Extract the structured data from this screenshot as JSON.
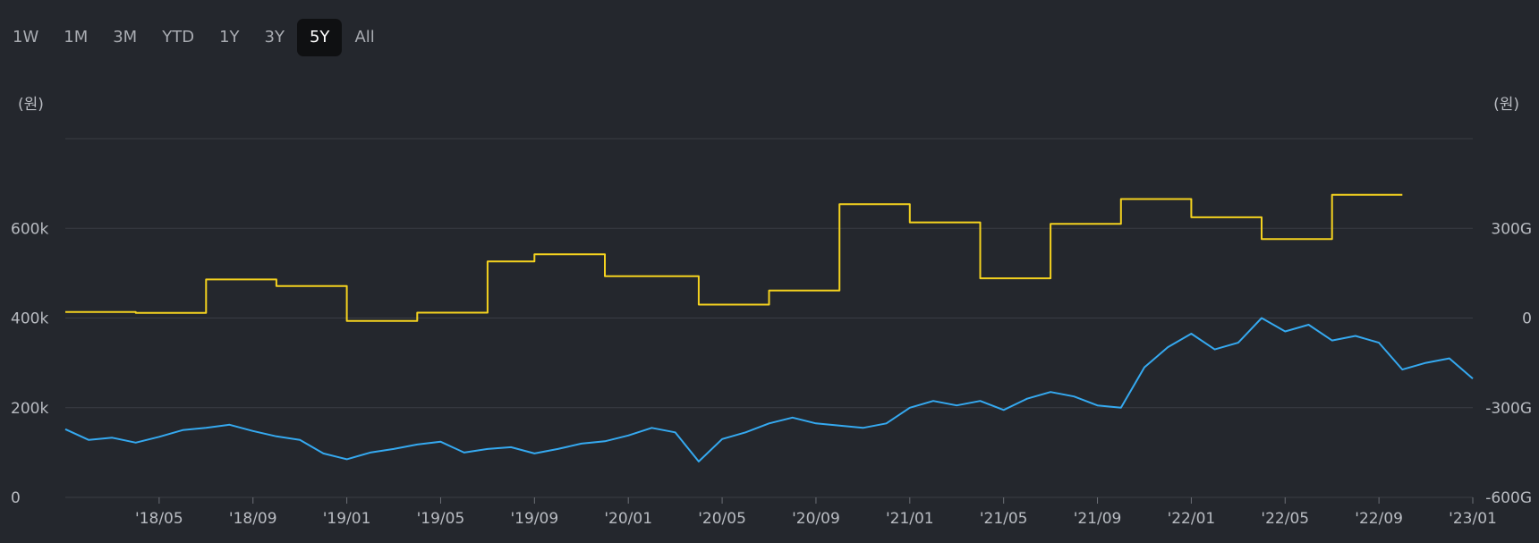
{
  "range_selector": {
    "buttons": [
      "1W",
      "1M",
      "3M",
      "YTD",
      "1Y",
      "3Y",
      "5Y",
      "All"
    ],
    "active": "5Y"
  },
  "chart_data": {
    "type": "line",
    "left_unit": "(원)",
    "right_unit": "(원)",
    "x_ticks": [
      "'18/05",
      "'18/09",
      "'19/01",
      "'19/05",
      "'19/09",
      "'20/01",
      "'20/05",
      "'20/09",
      "'21/01",
      "'21/05",
      "'21/09",
      "'22/01",
      "'22/05",
      "'22/09",
      "'23/01"
    ],
    "xlim": [
      "2018-01",
      "2023-01"
    ],
    "left_axis": {
      "ticks": [
        "0",
        "200k",
        "400k",
        "600k"
      ],
      "ylim": [
        0,
        800000
      ]
    },
    "right_axis": {
      "ticks": [
        "-600G",
        "-300G",
        "0",
        "300G"
      ],
      "ylim": [
        -600,
        600
      ],
      "unit_scale": "G"
    },
    "grid": true,
    "colors": {
      "price": "#35a9f0",
      "earnings": "#f4d21f",
      "grid": "#3a3d44"
    },
    "series": [
      {
        "axis": "right",
        "color": "#f4d21f",
        "step": true,
        "points": [
          [
            "2018-01",
            20
          ],
          [
            "2018-04",
            17
          ],
          [
            "2018-07",
            129
          ],
          [
            "2018-10",
            107
          ],
          [
            "2019-01",
            -10
          ],
          [
            "2019-04",
            18
          ],
          [
            "2019-07",
            189
          ],
          [
            "2019-09",
            213
          ],
          [
            "2019-12",
            140
          ],
          [
            "2020-04",
            45
          ],
          [
            "2020-07",
            92
          ],
          [
            "2020-10",
            381
          ],
          [
            "2021-01",
            320
          ],
          [
            "2021-04",
            133
          ],
          [
            "2021-07",
            315
          ],
          [
            "2021-10",
            398
          ],
          [
            "2022-01",
            337
          ],
          [
            "2022-04",
            264
          ],
          [
            "2022-07",
            412
          ],
          [
            "2022-10",
            412
          ]
        ]
      },
      {
        "axis": "left",
        "color": "#35a9f0",
        "step": false,
        "points": [
          [
            "2018-01",
            152000
          ],
          [
            "2018-02",
            128000
          ],
          [
            "2018-03",
            133000
          ],
          [
            "2018-04",
            122000
          ],
          [
            "2018-05",
            135000
          ],
          [
            "2018-06",
            150000
          ],
          [
            "2018-07",
            155000
          ],
          [
            "2018-08",
            162000
          ],
          [
            "2018-09",
            148000
          ],
          [
            "2018-10",
            136000
          ],
          [
            "2018-11",
            128000
          ],
          [
            "2018-12",
            98000
          ],
          [
            "2019-01",
            85000
          ],
          [
            "2019-02",
            100000
          ],
          [
            "2019-03",
            108000
          ],
          [
            "2019-04",
            118000
          ],
          [
            "2019-05",
            124000
          ],
          [
            "2019-06",
            100000
          ],
          [
            "2019-07",
            108000
          ],
          [
            "2019-08",
            112000
          ],
          [
            "2019-09",
            98000
          ],
          [
            "2019-10",
            108000
          ],
          [
            "2019-11",
            120000
          ],
          [
            "2019-12",
            125000
          ],
          [
            "2020-01",
            138000
          ],
          [
            "2020-02",
            155000
          ],
          [
            "2020-03",
            145000
          ],
          [
            "2020-04",
            80000
          ],
          [
            "2020-05",
            130000
          ],
          [
            "2020-06",
            145000
          ],
          [
            "2020-07",
            165000
          ],
          [
            "2020-08",
            178000
          ],
          [
            "2020-09",
            165000
          ],
          [
            "2020-10",
            160000
          ],
          [
            "2020-11",
            155000
          ],
          [
            "2020-12",
            165000
          ],
          [
            "2021-01",
            200000
          ],
          [
            "2021-02",
            215000
          ],
          [
            "2021-03",
            205000
          ],
          [
            "2021-04",
            215000
          ],
          [
            "2021-05",
            195000
          ],
          [
            "2021-06",
            220000
          ],
          [
            "2021-07",
            235000
          ],
          [
            "2021-08",
            225000
          ],
          [
            "2021-09",
            205000
          ],
          [
            "2021-10",
            200000
          ],
          [
            "2021-11",
            290000
          ],
          [
            "2021-12",
            335000
          ],
          [
            "2022-01",
            365000
          ],
          [
            "2022-02",
            330000
          ],
          [
            "2022-03",
            345000
          ],
          [
            "2022-04",
            400000
          ],
          [
            "2022-05",
            370000
          ],
          [
            "2022-06",
            385000
          ],
          [
            "2022-07",
            350000
          ],
          [
            "2022-08",
            360000
          ],
          [
            "2022-09",
            345000
          ],
          [
            "2022-10",
            285000
          ],
          [
            "2022-11",
            300000
          ],
          [
            "2022-12",
            310000
          ],
          [
            "2023-01",
            265000
          ]
        ]
      }
    ]
  }
}
